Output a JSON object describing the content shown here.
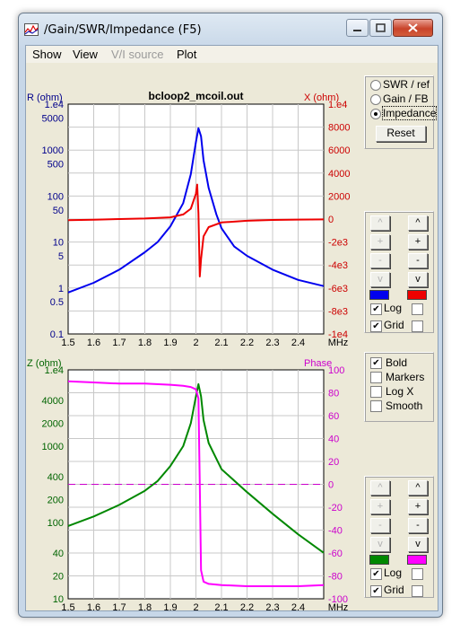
{
  "window": {
    "title": "/Gain/SWR/Impedance (F5)"
  },
  "menu": [
    {
      "label": "Show",
      "disabled": false
    },
    {
      "label": "View",
      "disabled": false
    },
    {
      "label": "V/I source",
      "disabled": true
    },
    {
      "label": "Plot",
      "disabled": false
    }
  ],
  "mode_panel": {
    "options": [
      "SWR / ref",
      "Gain / FB",
      "Impedance"
    ],
    "selected": 2,
    "reset_label": "Reset"
  },
  "upper_controls": {
    "buttons_left": [
      {
        "label": "^",
        "disabled": true
      },
      {
        "label": "+",
        "disabled": true
      },
      {
        "label": "-",
        "disabled": true
      },
      {
        "label": "v",
        "disabled": true
      }
    ],
    "buttons_right": [
      {
        "label": "^",
        "disabled": false
      },
      {
        "label": "+",
        "disabled": false
      },
      {
        "label": "-",
        "disabled": false
      },
      {
        "label": "v",
        "disabled": false
      }
    ],
    "left_color": "#0000ee",
    "right_color": "#ee0000",
    "log_label": "Log",
    "log_left": true,
    "log_right": false,
    "grid_label": "Grid",
    "grid_left": true,
    "grid_right": false
  },
  "options_panel": {
    "items": [
      {
        "label": "Bold",
        "checked": true
      },
      {
        "label": "Markers",
        "checked": false
      },
      {
        "label": "Log X",
        "checked": false
      },
      {
        "label": "Smooth",
        "checked": false
      }
    ]
  },
  "lower_controls": {
    "buttons_left": [
      {
        "label": "^",
        "disabled": true
      },
      {
        "label": "+",
        "disabled": true
      },
      {
        "label": "-",
        "disabled": true
      },
      {
        "label": "v",
        "disabled": true
      }
    ],
    "buttons_right": [
      {
        "label": "^",
        "disabled": false
      },
      {
        "label": "+",
        "disabled": false
      },
      {
        "label": "-",
        "disabled": false
      },
      {
        "label": "v",
        "disabled": false
      }
    ],
    "left_color": "#008800",
    "right_color": "#ff00ff",
    "log_label": "Log",
    "log_left": true,
    "log_right": false,
    "grid_label": "Grid",
    "grid_left": true,
    "grid_right": false
  },
  "chart_data": [
    {
      "type": "line",
      "title": "bcloop2_mcoil.out",
      "ylabel_left": "R (ohm)",
      "ylabel_right": "X (ohm)",
      "xlabel": "MHz",
      "xlim": [
        1.5,
        2.5
      ],
      "xticks": [
        "1.5",
        "1.6",
        "1.7",
        "1.8",
        "1.9",
        "2",
        "2.1",
        "2.2",
        "2.3",
        "2.4"
      ],
      "left_scale": "log",
      "ylim_left": [
        0.1,
        10000
      ],
      "yticks_left": [
        "1.e4",
        "5000",
        "1000",
        "500",
        "100",
        "50",
        "10",
        "5",
        "1",
        "0.5",
        "0.1"
      ],
      "ylim_right": [
        -10000,
        10000
      ],
      "yticks_right": [
        "1.e4",
        "8000",
        "6000",
        "4000",
        "2000",
        "0",
        "-2e3",
        "-4e3",
        "-6e3",
        "-8e3",
        "-1e4"
      ],
      "grid": true,
      "series": [
        {
          "name": "R",
          "color": "#0000ee",
          "axis": "left",
          "x": [
            1.5,
            1.6,
            1.7,
            1.8,
            1.85,
            1.9,
            1.95,
            1.98,
            2.0,
            2.01,
            2.02,
            2.03,
            2.05,
            2.08,
            2.1,
            2.15,
            2.2,
            2.3,
            2.4,
            2.5
          ],
          "y": [
            0.8,
            1.3,
            2.5,
            6,
            10,
            22,
            70,
            300,
            1500,
            3000,
            2000,
            600,
            150,
            40,
            20,
            8,
            5,
            2.5,
            1.5,
            1.1
          ]
        },
        {
          "name": "X",
          "color": "#ee0000",
          "axis": "right",
          "x": [
            1.5,
            1.6,
            1.7,
            1.8,
            1.9,
            1.95,
            1.98,
            2.0,
            2.005,
            2.01,
            2.015,
            2.02,
            2.03,
            2.05,
            2.1,
            2.2,
            2.3,
            2.4,
            2.5
          ],
          "y": [
            -100,
            -60,
            0,
            50,
            150,
            400,
            900,
            2200,
            3000,
            500,
            -5000,
            -3500,
            -1500,
            -700,
            -300,
            -150,
            -80,
            -50,
            -30
          ]
        }
      ]
    },
    {
      "type": "line",
      "ylabel_left": "Z (ohm)",
      "ylabel_right": "Phase",
      "xlabel": "MHz",
      "xlim": [
        1.5,
        2.5
      ],
      "xticks": [
        "1.5",
        "1.6",
        "1.7",
        "1.8",
        "1.9",
        "2",
        "2.1",
        "2.2",
        "2.3",
        "2.4"
      ],
      "left_scale": "log",
      "ylim_left": [
        10,
        10000
      ],
      "yticks_left": [
        "1.e4",
        "4000",
        "2000",
        "1000",
        "400",
        "200",
        "100",
        "40",
        "20",
        "10"
      ],
      "ylim_right": [
        -100,
        100
      ],
      "yticks_right": [
        "100",
        "80",
        "60",
        "40",
        "20",
        "0",
        "-20",
        "-40",
        "-60",
        "-80",
        "-100"
      ],
      "grid": true,
      "series": [
        {
          "name": "Z",
          "color": "#008800",
          "axis": "left",
          "x": [
            1.5,
            1.6,
            1.7,
            1.8,
            1.85,
            1.9,
            1.95,
            1.98,
            2.0,
            2.01,
            2.02,
            2.03,
            2.05,
            2.1,
            2.2,
            2.3,
            2.4,
            2.5
          ],
          "y": [
            90,
            120,
            170,
            260,
            350,
            550,
            1000,
            2000,
            4500,
            6500,
            4500,
            2200,
            1100,
            500,
            250,
            130,
            70,
            40
          ]
        },
        {
          "name": "Phase",
          "color": "#ff00ff",
          "axis": "right",
          "x": [
            1.5,
            1.6,
            1.7,
            1.8,
            1.9,
            1.95,
            1.98,
            2.0,
            2.01,
            2.015,
            2.02,
            2.03,
            2.05,
            2.1,
            2.2,
            2.3,
            2.4,
            2.5
          ],
          "y": [
            90,
            89,
            88,
            88,
            87,
            86,
            85,
            83,
            75,
            0,
            -75,
            -85,
            -87,
            -88,
            -89,
            -89,
            -89,
            -88
          ]
        }
      ]
    }
  ]
}
